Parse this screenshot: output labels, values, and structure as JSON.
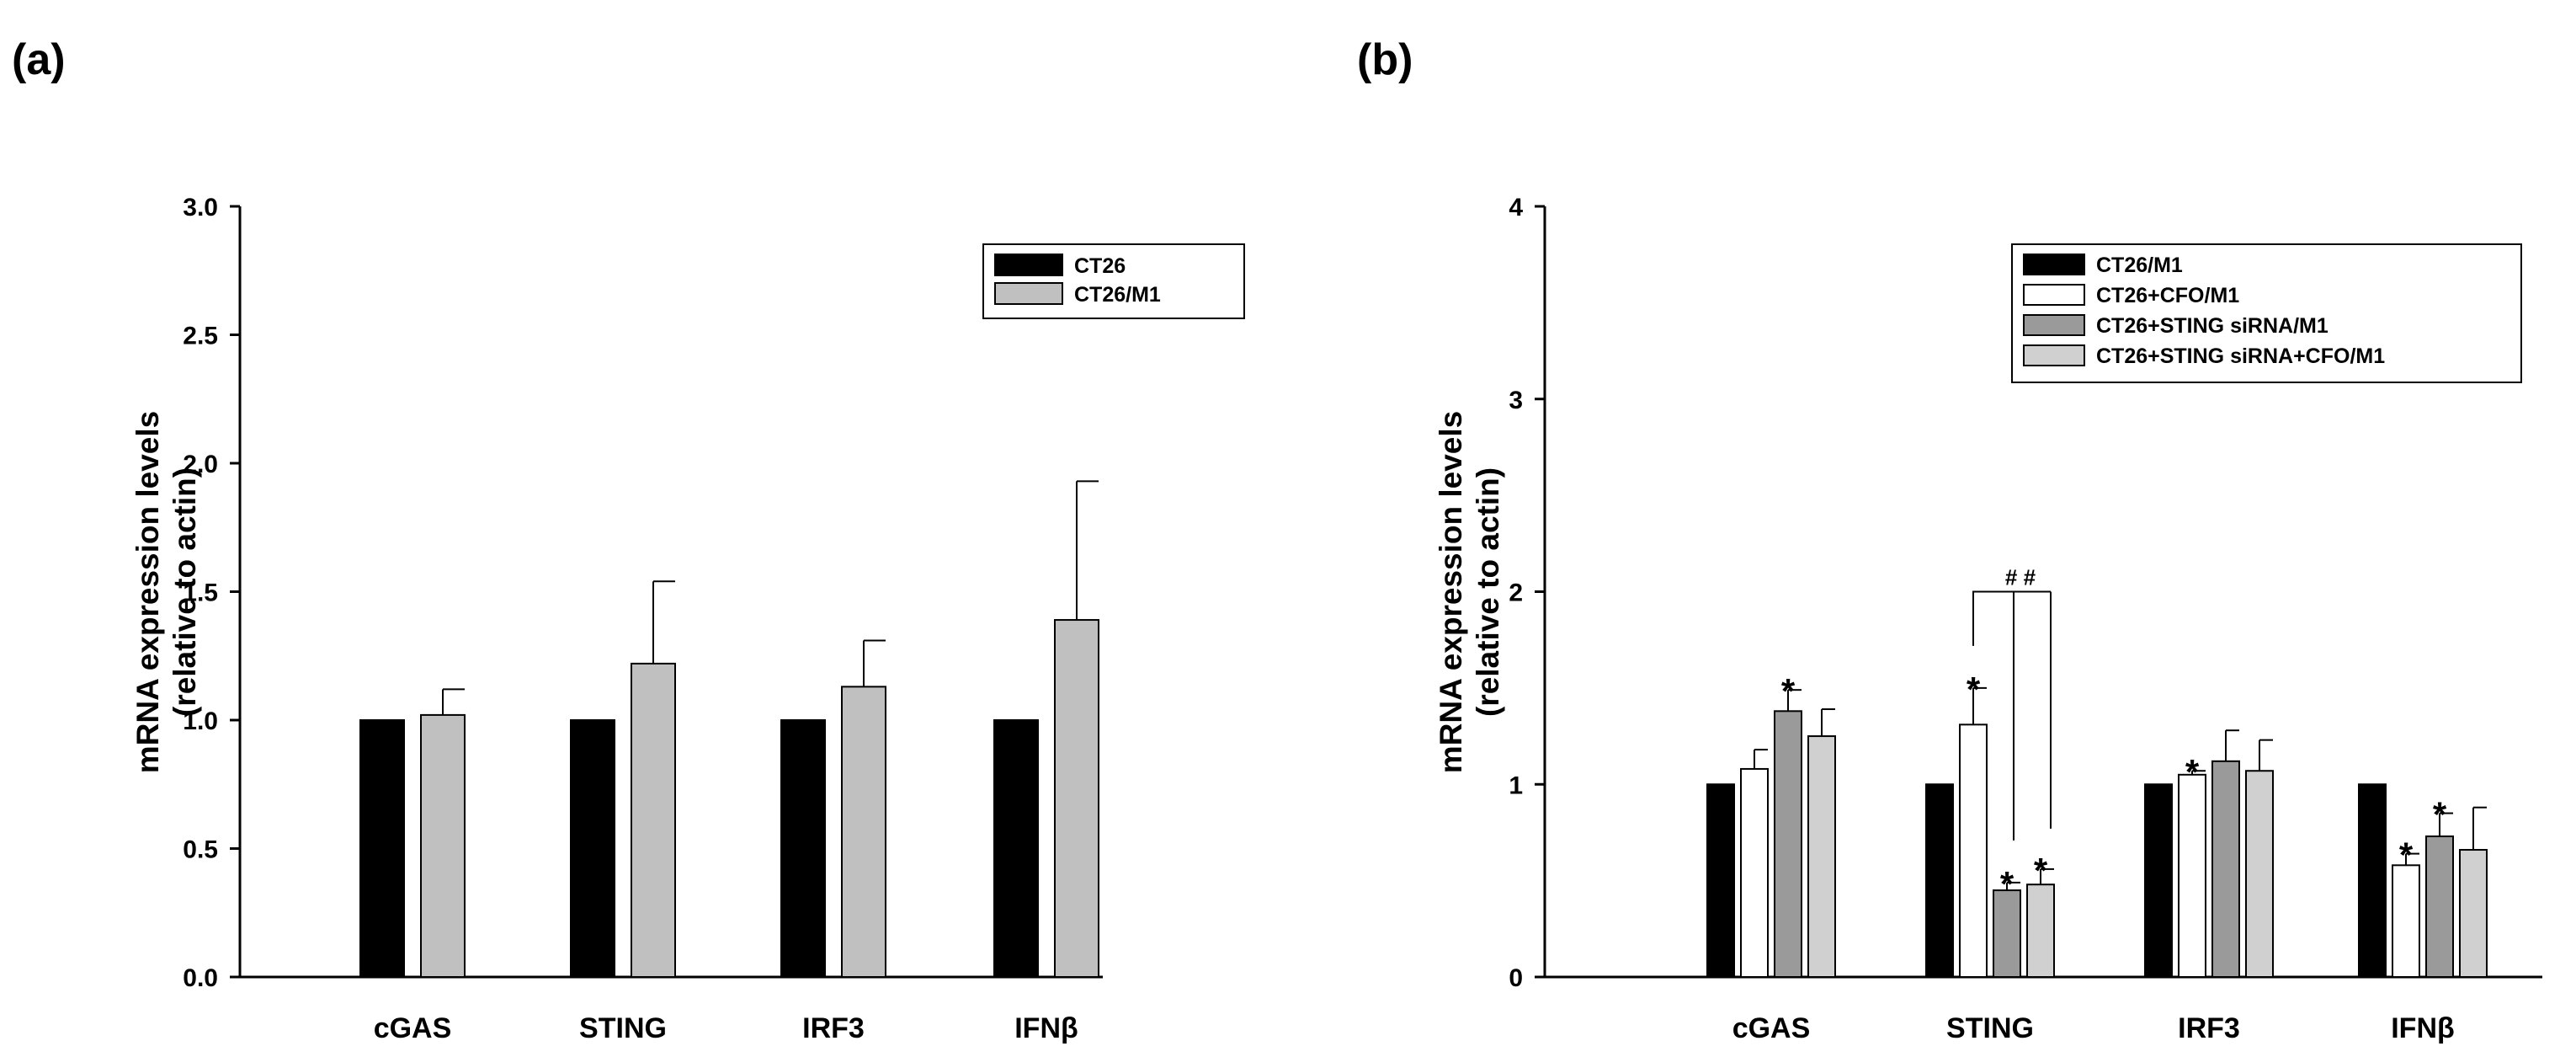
{
  "chart_data": [
    {
      "panel_label": "(a)",
      "type": "bar",
      "ylabel": [
        "mRNA expression levels",
        "(relative to actin)"
      ],
      "ylim": [
        0,
        3.0
      ],
      "yticks": [
        0.0,
        0.5,
        1.0,
        1.5,
        2.0,
        2.5,
        3.0
      ],
      "ytick_labels": [
        "0.0",
        "0.5",
        "1.0",
        "1.5",
        "2.0",
        "2.5",
        "3.0"
      ],
      "categories": [
        "cGAS",
        "STING",
        "IRF3",
        "IFNβ"
      ],
      "series": [
        {
          "name": "CT26",
          "color": "#000000",
          "values": [
            1.0,
            1.0,
            1.0,
            1.0
          ],
          "errors": [
            0,
            0,
            0,
            0
          ]
        },
        {
          "name": "CT26/M1",
          "color": "#c0c0c0",
          "values": [
            1.02,
            1.22,
            1.13,
            1.39
          ],
          "errors": [
            0.1,
            0.32,
            0.18,
            0.54
          ]
        }
      ],
      "legend_position": "top-right",
      "annotations": []
    },
    {
      "panel_label": "(b)",
      "type": "bar",
      "ylabel": [
        "mRNA expression levels",
        "(relative to actin)"
      ],
      "ylim": [
        0,
        4
      ],
      "yticks": [
        0,
        1,
        2,
        3,
        4
      ],
      "ytick_labels": [
        "0",
        "1",
        "2",
        "3",
        "4"
      ],
      "categories": [
        "cGAS",
        "STING",
        "IRF3",
        "IFNβ"
      ],
      "series": [
        {
          "name": "CT26/M1",
          "color": "#000000",
          "values": [
            1.0,
            1.0,
            1.0,
            1.0
          ],
          "errors": [
            0,
            0,
            0,
            0
          ]
        },
        {
          "name": "CT26+CFO/M1",
          "color": "#ffffff",
          "values": [
            1.08,
            1.31,
            1.05,
            0.58
          ],
          "errors": [
            0.1,
            0.19,
            0.02,
            0.06
          ]
        },
        {
          "name": "CT26+STING siRNA/M1",
          "color": "#9a9a9a",
          "values": [
            1.38,
            0.45,
            1.12,
            0.73
          ],
          "errors": [
            0.11,
            0.04,
            0.16,
            0.12
          ]
        },
        {
          "name": "CT26+STING siRNA+CFO/M1",
          "color": "#d0d0d0",
          "values": [
            1.25,
            0.48,
            1.07,
            0.66
          ],
          "errors": [
            0.14,
            0.08,
            0.16,
            0.22
          ]
        }
      ],
      "legend_position": "top-right",
      "annotations": [
        {
          "text": "*",
          "category": 0,
          "series": 2
        },
        {
          "text": "*",
          "category": 1,
          "series": 1
        },
        {
          "text": "*",
          "category": 1,
          "series": 2
        },
        {
          "text": "*",
          "category": 1,
          "series": 3
        },
        {
          "text": "*",
          "category": 2,
          "series": 1
        },
        {
          "text": "*",
          "category": 3,
          "series": 1
        },
        {
          "text": "*",
          "category": 3,
          "series": 2
        }
      ],
      "brackets": [
        {
          "text": "# #",
          "category": 1,
          "from_series": 1,
          "to_series": [
            2,
            3
          ]
        }
      ]
    }
  ]
}
